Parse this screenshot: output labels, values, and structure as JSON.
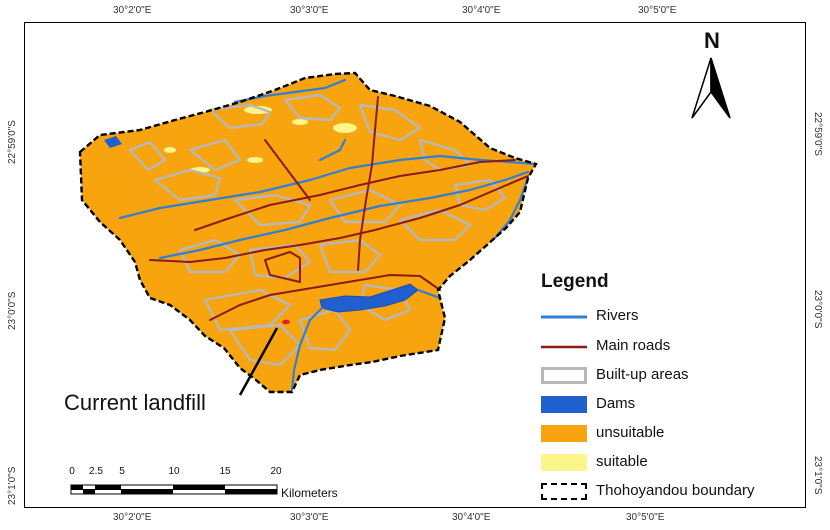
{
  "map": {
    "top_coords": [
      "30°2'0\"E",
      "30°3'0\"E",
      "30°4'0\"E",
      "30°5'0\"E"
    ],
    "bottom_coords": [
      "30°2'0\"E",
      "30°3'0\"E",
      "30°4'0\"E",
      "30°5'0\"E"
    ],
    "left_coords": [
      "22°59'0\"S",
      "23°0'0\"S",
      "23°1'0\"S"
    ],
    "right_coords": [
      "22°59'0\"S",
      "23°0'0\"S",
      "23°1'0\"S"
    ],
    "north_label": "N",
    "annotation": "Current landfill"
  },
  "legend": {
    "title": "Legend",
    "items": [
      {
        "label": "Rivers",
        "symbol": "line",
        "color": "#2f7fd8"
      },
      {
        "label": "Main roads",
        "symbol": "line",
        "color": "#8b1a1a"
      },
      {
        "label": "Built-up areas",
        "symbol": "hollow",
        "color": "#b8b8b8"
      },
      {
        "label": "Dams",
        "symbol": "fill",
        "color": "#1f5fd0"
      },
      {
        "label": "unsuitable",
        "symbol": "fill",
        "color": "#f7a40f"
      },
      {
        "label": "suitable",
        "symbol": "fill",
        "color": "#fbf58a"
      },
      {
        "label": "Thohoyandou boundary",
        "symbol": "dashed",
        "color": "#000000"
      }
    ]
  },
  "scale_bar": {
    "ticks": [
      "0",
      "2.5",
      "5",
      "10",
      "15",
      "20"
    ],
    "unit": "Kilometers"
  },
  "colors": {
    "unsuitable": "#f7a40f",
    "suitable": "#fbf58a",
    "dams": "#1f5fd0",
    "rivers": "#2f7fd8",
    "roads": "#8b1a1a",
    "builtup": "#b8b8b8"
  }
}
